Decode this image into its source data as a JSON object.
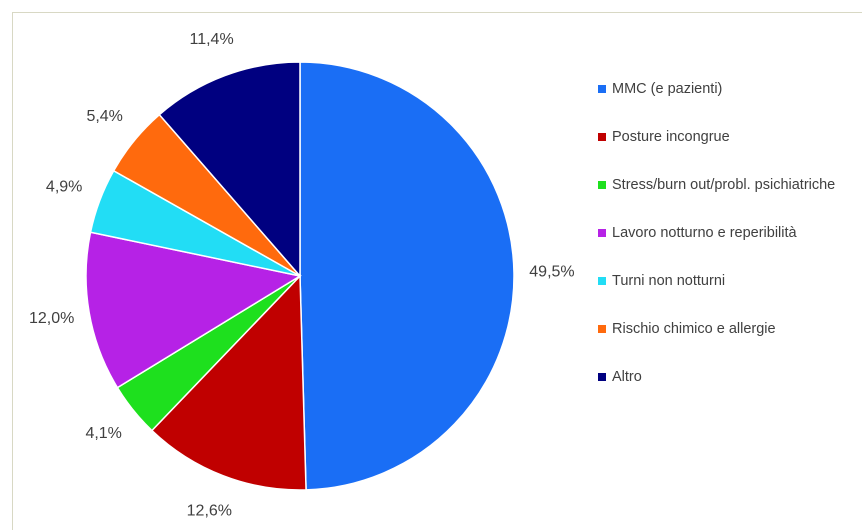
{
  "chart_data": {
    "type": "pie",
    "categories": [
      "MMC (e pazienti)",
      "Posture incongrue",
      "Stress/burn out/probl. psichiatriche",
      "Lavoro notturno e reperibilità",
      "Turni non notturni",
      "Rischio chimico e allergie",
      "Altro"
    ],
    "values": [
      49.5,
      12.6,
      4.1,
      12.0,
      4.9,
      5.4,
      11.4
    ],
    "value_labels": [
      "49,5%",
      "12,6%",
      "4,1%",
      "12,0%",
      "4,9%",
      "5,4%",
      "11,4%"
    ],
    "colors": [
      "#1a6ef5",
      "#c00000",
      "#1ee01e",
      "#b622e6",
      "#22ddf5",
      "#ff6a0d",
      "#000080"
    ],
    "legend": "right"
  }
}
